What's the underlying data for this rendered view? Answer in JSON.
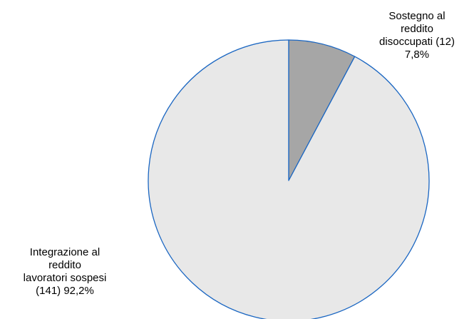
{
  "chart_data": {
    "type": "pie",
    "title": "",
    "start_angle_deg": 0,
    "direction": "clockwise",
    "border_color": "#1a66c2",
    "slices": [
      {
        "label_lines": [
          "Sostegno al",
          "reddito",
          "disoccupati (12)",
          "7,8%"
        ],
        "count": 12,
        "percent": 7.8,
        "color": "#a6a6a6"
      },
      {
        "label_lines": [
          "Integrazione al",
          "reddito",
          "lavoratori sospesi",
          "(141) 92,2%"
        ],
        "count": 141,
        "percent": 92.2,
        "color": "#e8e8e8"
      }
    ]
  }
}
